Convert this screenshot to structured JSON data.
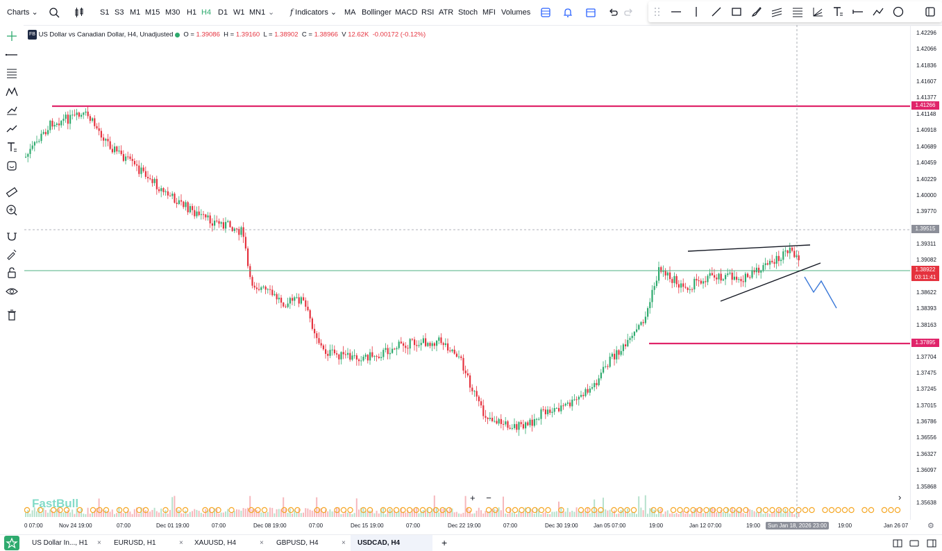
{
  "toolbar": {
    "charts_label": "Charts",
    "timeframes": [
      "S1",
      "S3",
      "M1",
      "M15",
      "M30",
      "H1",
      "H4",
      "D1",
      "W1",
      "MN1"
    ],
    "active_timeframe": "H4",
    "indicators_label": "Indicators",
    "indicator_shortcuts": [
      "MA",
      "Bollinger",
      "MACD",
      "RSI",
      "ATR",
      "Stoch",
      "MFI",
      "Volumes"
    ]
  },
  "legend": {
    "symbol": "US Dollar vs Canadian Dollar, H4, Unadjusted",
    "badge": "FB",
    "open_label": "O",
    "open": "1.39086",
    "high_label": "H",
    "high": "1.39160",
    "low_label": "L",
    "low": "1.38902",
    "close_label": "C",
    "close": "1.38966",
    "volume_label": "V",
    "volume": "12.62K",
    "change": "-0.00172 (-0.12%)"
  },
  "price_axis": {
    "labels": [
      "1.42296",
      "1.42066",
      "1.41836",
      "1.41607",
      "1.41377",
      "1.41148",
      "1.40918",
      "1.40689",
      "1.40459",
      "1.40229",
      "1.40000",
      "1.39770",
      "1.39311",
      "1.39082",
      "1.38622",
      "1.38393",
      "1.38163",
      "1.37704",
      "1.37475",
      "1.37245",
      "1.37015",
      "1.36786",
      "1.36556",
      "1.36327",
      "1.36097",
      "1.35868",
      "1.35638"
    ],
    "tag_resistance": "1.41266",
    "tag_crosshair": "1.39515",
    "tag_current": "1.38922",
    "tag_countdown": "03:11:41",
    "tag_support": "1.37895"
  },
  "time_axis": {
    "labels": [
      "0 07:00",
      "Nov 24 19:00",
      "07:00",
      "Dec 01 19:00",
      "07:00",
      "Dec 08 19:00",
      "07:00",
      "Dec 15 19:00",
      "07:00",
      "Dec 22 19:00",
      "07:00",
      "Dec 30 19:00",
      "Jan 05 07:00",
      "19:00",
      "Jan 12 07:00",
      "19:00",
      "19:00",
      "Jan 26 07"
    ],
    "cursor_label": "Sun Jan 18, 2026 23:00"
  },
  "watermark": "FastBull",
  "zoom": {
    "plus": "+",
    "minus": "−"
  },
  "tabs": [
    {
      "label": "US Dollar In..., H1",
      "active": false
    },
    {
      "label": "EURUSD, H1",
      "active": false
    },
    {
      "label": "XAUUSD, H4",
      "active": false
    },
    {
      "label": "GBPUSD, H4",
      "active": false
    },
    {
      "label": "USDCAD, H4",
      "active": true
    }
  ],
  "tab_close": "×",
  "add_tab": "+",
  "colors": {
    "bull": "#2eaa6e",
    "bear": "#e5323e",
    "level": "#e0246a",
    "current_price": "#4caf82",
    "projection": "#3a78d8",
    "event_marker": "#f5a623"
  },
  "icons": [
    "search-icon",
    "candle-type-icon",
    "function-icon",
    "layout-icon",
    "alert-icon",
    "calendar-icon",
    "undo-icon",
    "redo-icon",
    "crosshair-icon",
    "trendline-icon",
    "pencil-icon",
    "ruler-icon",
    "zoom-icon",
    "magnet-icon",
    "lock-icon",
    "eye-icon",
    "trash-icon",
    "star-icon"
  ]
}
